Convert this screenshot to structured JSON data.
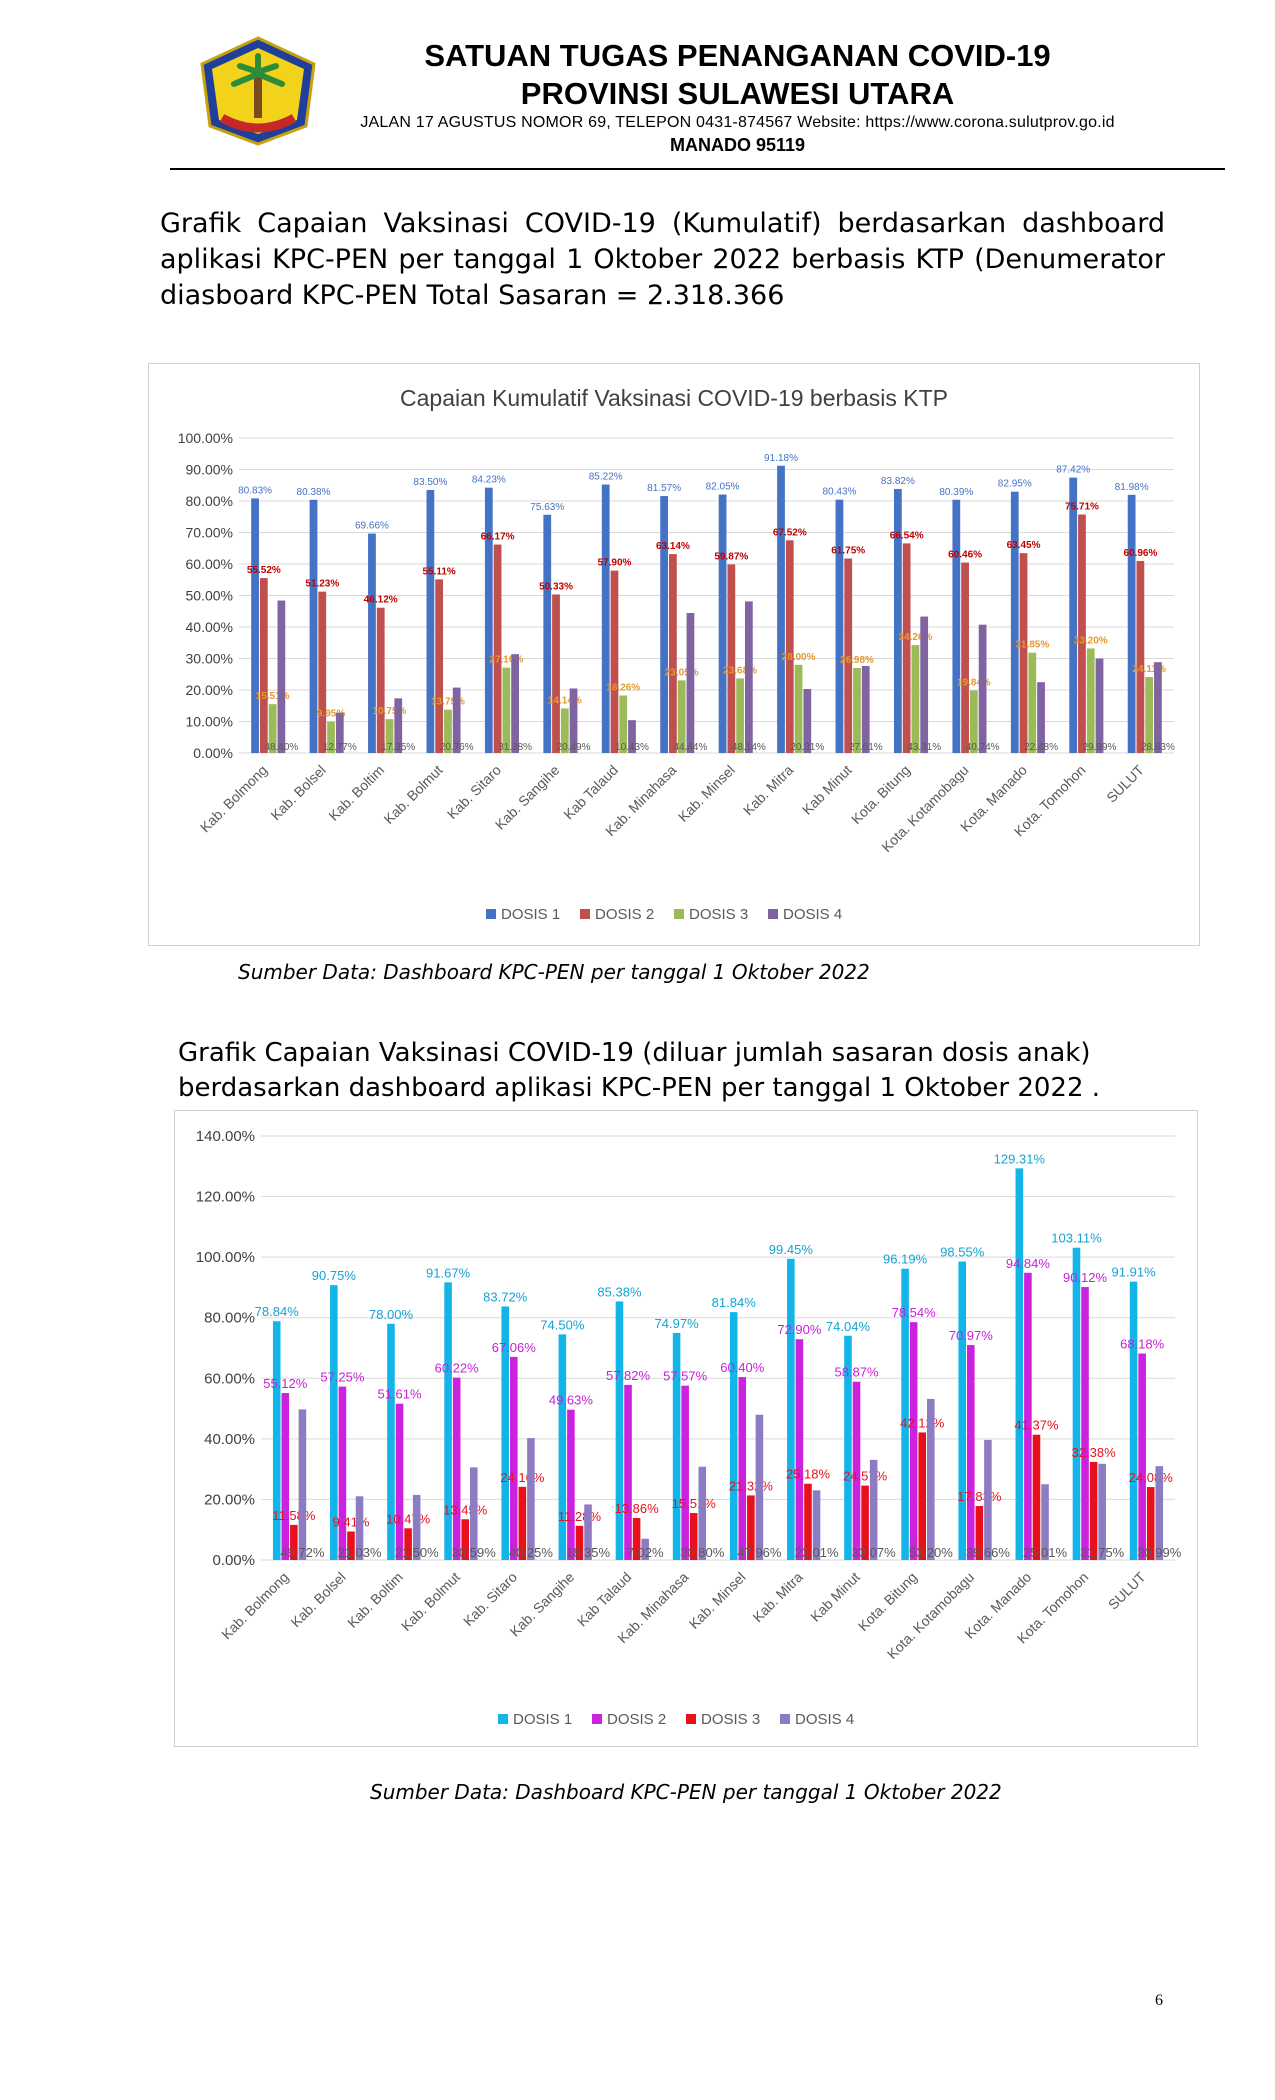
{
  "header": {
    "title_line1": "SATUAN TUGAS PENANGANAN COVID-19",
    "title_line2": "PROVINSI SULAWESI UTARA",
    "address": "JALAN 17 AGUSTUS NOMOR 69, TELEPON 0431-874567 Website: https://www.corona.sulutprov.go.id",
    "city": "MANADO 95119",
    "logo_colors": {
      "outer": "#1f3f9a",
      "inner": "#f2d21b",
      "tree": "#2e8b3a"
    }
  },
  "section1": {
    "intro": "Grafik Capaian Vaksinasi COVID-19 (Kumulatif) berdasarkan dashboard aplikasi KPC-PEN per tanggal 1 Oktober 2022 berbasis KTP (Denumerator diasboard KPC-PEN Total Sasaran = 2.318.366",
    "source": "Sumber Data: Dashboard KPC-PEN per tanggal 1 Oktober 2022"
  },
  "section2": {
    "intro_line1": "Grafik Capaian Vaksinasi COVID-19 (diluar jumlah sasaran dosis anak)",
    "intro_line2": "berdasarkan dashboard aplikasi KPC-PEN per tanggal 1 Oktober 2022 .",
    "source": "Sumber Data: Dashboard KPC-PEN per tanggal 1 Oktober 2022"
  },
  "page_number": "6",
  "chart_data": [
    {
      "type": "bar",
      "title": "Capaian Kumulatif Vaksinasi COVID-19 berbasis KTP",
      "ylim": [
        0,
        100
      ],
      "ytick_step": 10,
      "yticks_suffix": "%",
      "grid": true,
      "legend_position": "bottom",
      "categories": [
        "Kab. Bolmong",
        "Kab. Bolsel",
        "Kab. Boltim",
        "Kab. Bolmut",
        "Kab. Sitaro",
        "Kab. Sangihe",
        "Kab Talaud",
        "Kab. Minahasa",
        "Kab. Minsel",
        "Kab. Mitra",
        "Kab Minut",
        "Kota. Bitung",
        "Kota. Kotamobagu",
        "Kota. Manado",
        "Kota. Tomohon",
        "SULUT"
      ],
      "series": [
        {
          "name": "DOSIS 1",
          "color": "#4472c4",
          "label_color": "#4472c4",
          "values": [
            80.83,
            80.38,
            69.66,
            83.5,
            84.23,
            75.63,
            85.22,
            81.57,
            82.05,
            91.18,
            80.43,
            83.82,
            80.39,
            82.95,
            87.42,
            81.98
          ]
        },
        {
          "name": "DOSIS 2",
          "color": "#c0504d",
          "label_color": "#c00000",
          "values": [
            55.52,
            51.23,
            46.12,
            55.11,
            66.17,
            50.33,
            57.9,
            63.14,
            59.87,
            67.52,
            61.75,
            66.54,
            60.46,
            63.45,
            75.71,
            60.96
          ]
        },
        {
          "name": "DOSIS 3",
          "color": "#9bbb59",
          "label_color": "#e69a2e",
          "values": [
            15.51,
            9.95,
            10.75,
            13.75,
            27.1,
            14.14,
            18.26,
            23.05,
            23.68,
            28.0,
            26.98,
            34.26,
            19.84,
            31.85,
            33.2,
            24.11
          ]
        },
        {
          "name": "DOSIS 4",
          "color": "#8064a2",
          "label_color": "#595959",
          "values": [
            48.4,
            12.77,
            17.35,
            20.76,
            31.38,
            20.49,
            10.43,
            44.44,
            48.14,
            20.31,
            27.61,
            43.31,
            40.74,
            22.48,
            29.99,
            28.83
          ]
        }
      ]
    },
    {
      "type": "bar",
      "title": "",
      "ylim": [
        0,
        140
      ],
      "ytick_step": 20,
      "yticks_suffix": "%",
      "grid": true,
      "legend_position": "bottom",
      "categories": [
        "Kab. Bolmong",
        "Kab. Bolsel",
        "Kab. Boltim",
        "Kab. Bolmut",
        "Kab. Sitaro",
        "Kab. Sangihe",
        "Kab Talaud",
        "Kab. Minahasa",
        "Kab. Minsel",
        "Kab. Mitra",
        "Kab Minut",
        "Kota. Bitung",
        "Kota. Kotamobagu",
        "Kota. Manado",
        "Kota. Tomohon",
        "SULUT"
      ],
      "series": [
        {
          "name": "DOSIS 1",
          "color": "#13b4e8",
          "label_color": "#13a3d4",
          "values": [
            78.84,
            90.75,
            78.0,
            91.67,
            83.72,
            74.5,
            85.38,
            74.97,
            81.84,
            99.45,
            74.04,
            96.19,
            98.55,
            129.31,
            103.11,
            91.91
          ]
        },
        {
          "name": "DOSIS 2",
          "color": "#cc22dd",
          "label_color": "#c81fd9",
          "values": [
            55.12,
            57.25,
            51.61,
            60.22,
            67.06,
            49.63,
            57.82,
            57.57,
            60.4,
            72.9,
            58.87,
            78.54,
            70.97,
            94.84,
            90.12,
            68.18
          ]
        },
        {
          "name": "DOSIS 3",
          "color": "#e8111b",
          "label_color": "#e8111b",
          "values": [
            11.58,
            9.41,
            10.47,
            13.45,
            24.16,
            11.28,
            13.86,
            15.51,
            21.32,
            25.18,
            24.57,
            42.12,
            17.83,
            41.37,
            32.38,
            24.08
          ]
        },
        {
          "name": "DOSIS 4",
          "color": "#8e7cc3",
          "label_color": "#595959",
          "values": [
            49.72,
            21.03,
            21.5,
            30.59,
            40.25,
            18.35,
            7.02,
            30.8,
            47.96,
            23.01,
            33.07,
            53.2,
            39.66,
            25.01,
            31.75,
            30.99
          ]
        }
      ]
    }
  ]
}
